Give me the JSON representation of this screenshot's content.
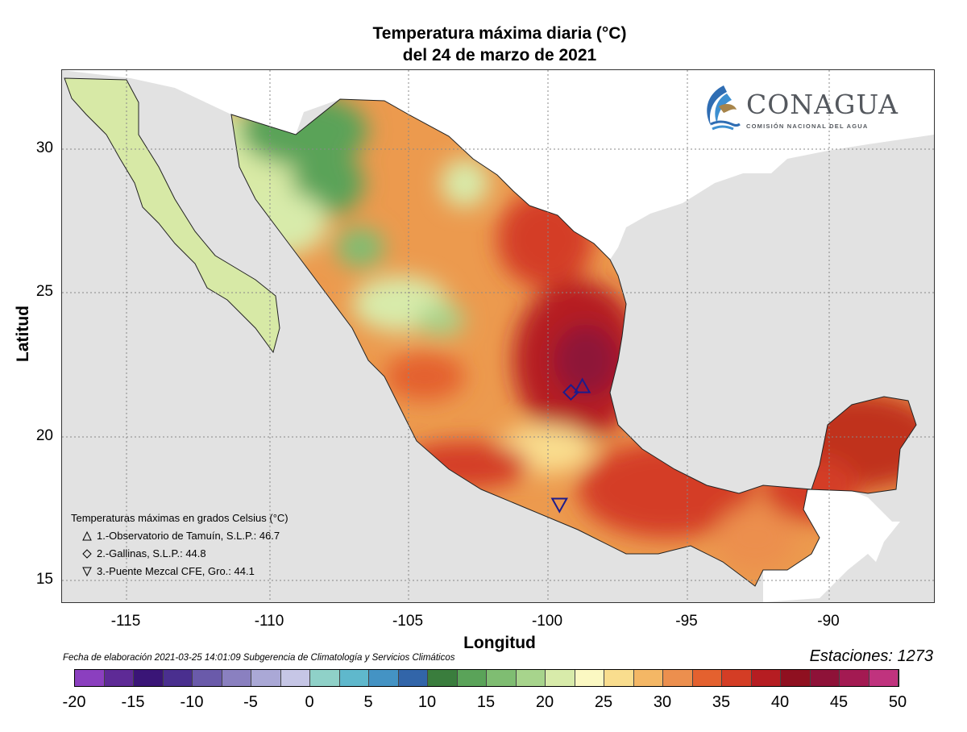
{
  "header": {
    "title_line1": "Temperatura máxima diaria (°C)",
    "title_line2": "del 24 de marzo de 2021"
  },
  "axes": {
    "ylabel": "Latitud",
    "xlabel": "Longitud",
    "lat_ticks": [
      "30",
      "25",
      "20",
      "15"
    ],
    "lon_ticks": [
      "-115",
      "-110",
      "-105",
      "-100",
      "-95",
      "-90"
    ]
  },
  "logo": {
    "name": "CONAGUA",
    "subtitle": "COMISIÓN NACIONAL DEL AGUA"
  },
  "legend": {
    "heading": "Temperaturas máximas en grados Celsius (°C)",
    "items": [
      {
        "symbol": "triangle-up",
        "text": "1.-Observatorio de Tamuín, S.L.P.: 46.7"
      },
      {
        "symbol": "diamond",
        "text": "2.-Gallinas, S.L.P.: 44.8"
      },
      {
        "symbol": "triangle-down",
        "text": "3.-Puente Mezcal CFE, Gro.: 44.1"
      }
    ]
  },
  "footer": {
    "credit": "Fecha de elaboración 2021-03-25 14:01:09 Subgerencia de Climatología y Servicios Climáticos",
    "stations": "Estaciones:  1273"
  },
  "colorbar": {
    "labels": [
      "-20",
      "-15",
      "-10",
      "-5",
      "0",
      "5",
      "10",
      "15",
      "20",
      "25",
      "30",
      "35",
      "40",
      "45",
      "50"
    ],
    "colors": [
      "#8b3fbf",
      "#5e2a96",
      "#3a1577",
      "#4a2f8f",
      "#6a5aaa",
      "#8a80c0",
      "#aaa8d6",
      "#c6c6e6",
      "#8fd1c8",
      "#5fb8cc",
      "#4493c4",
      "#3265a9",
      "#3a7d3d",
      "#5aa359",
      "#7fbd72",
      "#a7d48c",
      "#d8ebaa",
      "#fbf8c2",
      "#f9dd8e",
      "#f4b765",
      "#ec8f4e",
      "#e4612f",
      "#d43d25",
      "#b61d22",
      "#8f1020",
      "#8e1238",
      "#a31a52",
      "#c0337e"
    ]
  },
  "chart_data": {
    "type": "map",
    "title": "Temperatura máxima diaria (°C) del 24 de marzo de 2021",
    "xlabel": "Longitud",
    "ylabel": "Latitud",
    "xlim": [
      -117,
      -86.5
    ],
    "ylim": [
      14.5,
      33
    ],
    "markers": [
      {
        "name": "Observatorio de Tamuín, S.L.P.",
        "symbol": "triangle-up",
        "lon": -98.8,
        "lat": 22.0,
        "value": 46.7
      },
      {
        "name": "Gallinas, S.L.P.",
        "symbol": "diamond",
        "lon": -99.2,
        "lat": 21.8,
        "value": 44.8
      },
      {
        "name": "Puente Mezcal CFE, Gro.",
        "symbol": "triangle-down",
        "lon": -99.6,
        "lat": 17.9,
        "value": 44.1
      }
    ],
    "color_scale": {
      "min": -20,
      "max": 50,
      "step": 2.5,
      "unit": "°C"
    }
  }
}
